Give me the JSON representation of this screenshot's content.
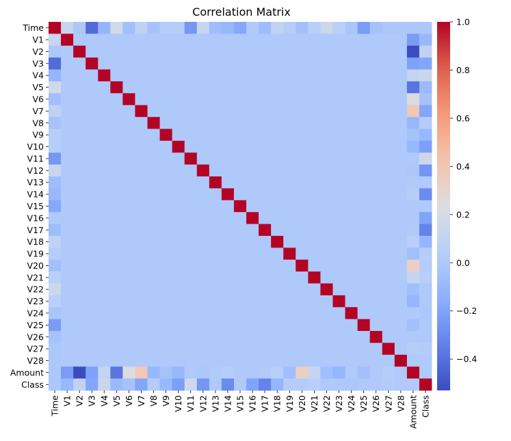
{
  "chart_data": {
    "type": "heatmap",
    "title": "Correlation Matrix",
    "labels": [
      "Time",
      "V1",
      "V2",
      "V3",
      "V4",
      "V5",
      "V6",
      "V7",
      "V8",
      "V9",
      "V10",
      "V11",
      "V12",
      "V13",
      "V14",
      "V15",
      "V16",
      "V17",
      "V18",
      "V19",
      "V20",
      "V21",
      "V22",
      "V23",
      "V24",
      "V25",
      "V26",
      "V27",
      "V28",
      "Amount",
      "Class"
    ],
    "colormap": "coolwarm",
    "vmin": -0.53,
    "vmax": 1.0,
    "colorbar_ticks": [
      "-0.4",
      "-0.2",
      "0.0",
      "0.2",
      "0.4",
      "0.6",
      "0.8",
      "1.0"
    ],
    "time_correlations": [
      1.0,
      0.12,
      -0.01,
      -0.42,
      -0.11,
      0.17,
      -0.06,
      0.08,
      -0.04,
      0.03,
      0.03,
      -0.25,
      0.12,
      -0.07,
      -0.1,
      -0.18,
      0.01,
      -0.07,
      0.09,
      0.03,
      -0.05,
      0.04,
      0.14,
      0.05,
      -0.02,
      -0.23,
      -0.04,
      -0.01,
      -0.01,
      -0.01,
      -0.01
    ],
    "amount_correlations": [
      -0.01,
      -0.23,
      -0.53,
      -0.21,
      0.1,
      -0.39,
      0.22,
      0.4,
      -0.1,
      -0.04,
      -0.1,
      0.0,
      -0.01,
      0.01,
      0.03,
      -0.0,
      -0.0,
      0.01,
      0.04,
      -0.06,
      0.34,
      0.11,
      -0.06,
      -0.11,
      0.01,
      -0.05,
      -0.0,
      0.03,
      0.01,
      1.0,
      0.01
    ],
    "class_correlations": [
      -0.01,
      -0.1,
      0.09,
      -0.19,
      0.13,
      -0.09,
      -0.04,
      -0.19,
      0.02,
      -0.1,
      -0.22,
      0.15,
      -0.26,
      -0.0,
      -0.3,
      -0.0,
      -0.2,
      -0.33,
      -0.11,
      0.03,
      0.02,
      0.04,
      0.0,
      -0.0,
      -0.01,
      0.0,
      0.0,
      0.02,
      0.01,
      0.01,
      1.0
    ]
  }
}
